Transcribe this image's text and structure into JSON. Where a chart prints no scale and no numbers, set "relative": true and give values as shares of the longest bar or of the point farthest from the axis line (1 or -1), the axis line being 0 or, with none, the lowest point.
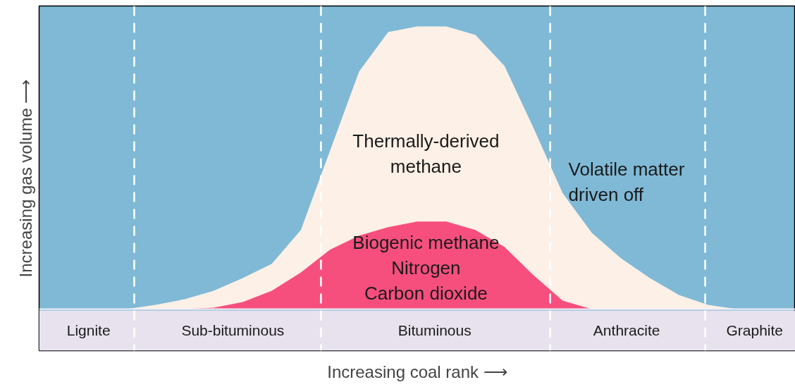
{
  "chart_data": {
    "type": "area",
    "relative": true,
    "xlabel": "Increasing coal rank ⟶",
    "ylabel": "Increasing gas volume ⟶",
    "categories": [
      null,
      null,
      null,
      null,
      null,
      null,
      null,
      null,
      null,
      null,
      null,
      null,
      null,
      null,
      null,
      null,
      null,
      null,
      null,
      null,
      null,
      null,
      null,
      null,
      null,
      null,
      null
    ],
    "series": [
      {
        "name": "Thermally-derived\nmethane",
        "color": "#fdf0e6",
        "values": [
          0,
          0,
          0,
          0,
          0.015,
          0.035,
          0.065,
          0.11,
          0.16,
          0.28,
          0.56,
          0.84,
          0.98,
          1,
          1,
          0.97,
          0.86,
          0.64,
          0.41,
          0.27,
          0.18,
          0.11,
          0.05,
          0.015,
          0,
          0,
          0
        ]
      },
      {
        "name": "Biogenic methane\nNitrogen\nCarbon dioxide",
        "color": "#f64f7e",
        "values": [
          0,
          0,
          0,
          0,
          0,
          0,
          0.005,
          0.025,
          0.065,
          0.13,
          0.21,
          0.26,
          0.29,
          0.31,
          0.31,
          0.28,
          0.22,
          0.12,
          0.03,
          0,
          0,
          0,
          0,
          0,
          0,
          0,
          0
        ]
      }
    ],
    "annotations": [
      "Volatile matter\ndriven off",
      "Lignite",
      "Sub-bituminous",
      "Bituminous",
      "Anthracite",
      "Graphite"
    ],
    "grid": false
  }
}
